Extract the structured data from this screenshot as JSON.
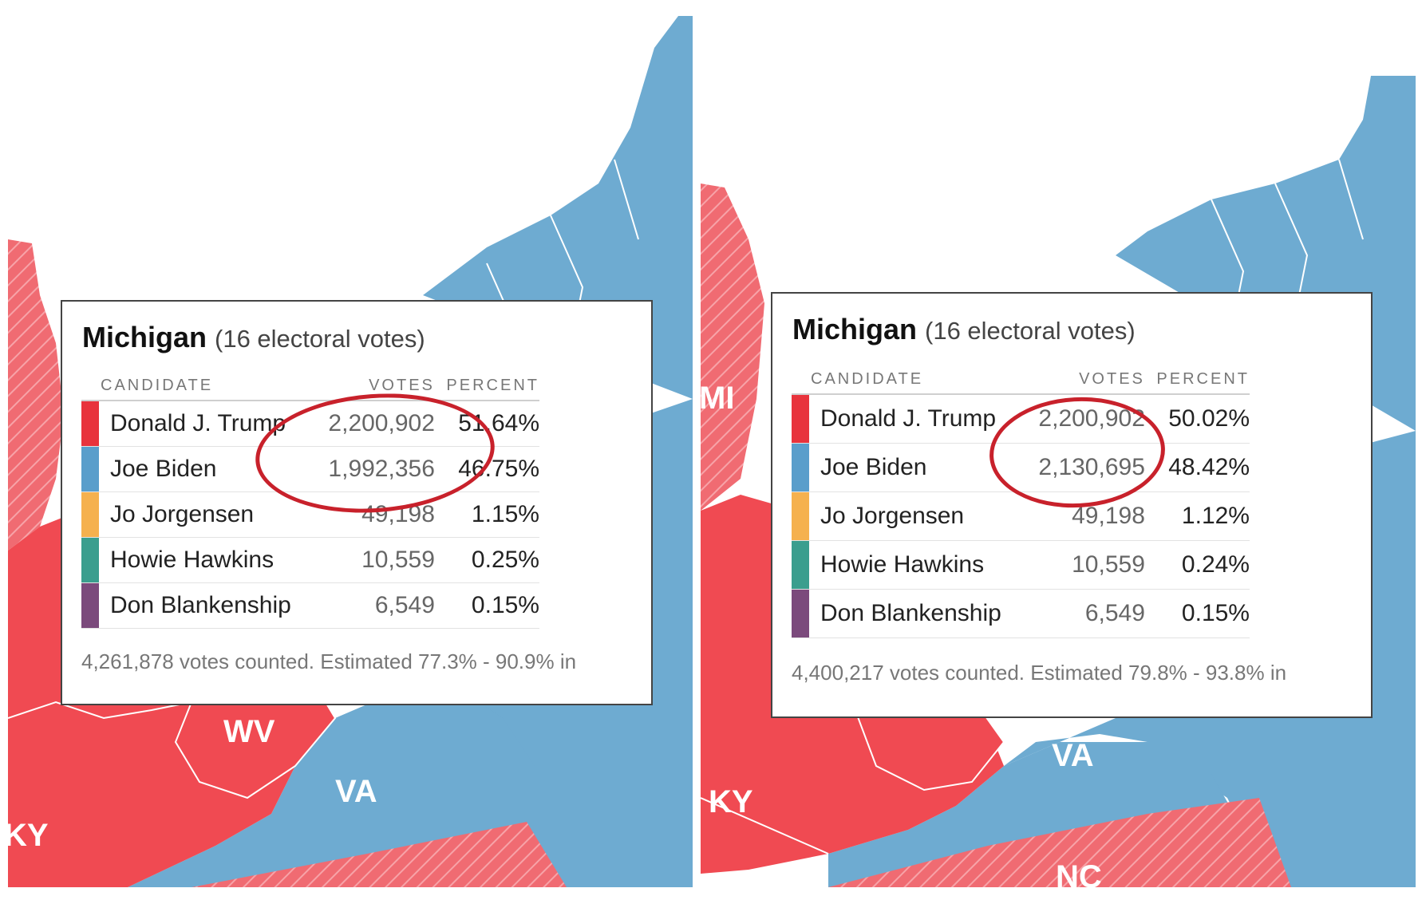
{
  "colors": {
    "republican": "#f04a52",
    "democrat": "#6eabd1",
    "highlight_circle": "#c8212b"
  },
  "panels": [
    {
      "map_labels": {
        "wv": "WV",
        "va": "VA",
        "ky": "KY"
      },
      "popup": {
        "state": "Michigan",
        "electoral": "(16 electoral votes)",
        "headers": {
          "candidate": "CANDIDATE",
          "votes": "VOTES",
          "percent": "PERCENT"
        },
        "rows": [
          {
            "name": "Donald J. Trump",
            "votes": "2,200,902",
            "percent": "51.64%",
            "color": "#e8333c"
          },
          {
            "name": "Joe Biden",
            "votes": "1,992,356",
            "percent": "46.75%",
            "color": "#5a9ecb"
          },
          {
            "name": "Jo Jorgensen",
            "votes": "49,198",
            "percent": "1.15%",
            "color": "#f5b14e"
          },
          {
            "name": "Howie Hawkins",
            "votes": "10,559",
            "percent": "0.25%",
            "color": "#3a9e8e"
          },
          {
            "name": "Don Blankenship",
            "votes": "6,549",
            "percent": "0.15%",
            "color": "#7b4a7c"
          }
        ],
        "footer": "4,261,878 votes counted. Estimated 77.3% - 90.9% in"
      }
    },
    {
      "map_labels": {
        "mi": "MI",
        "va": "VA",
        "ky": "KY",
        "nc": "NC"
      },
      "popup": {
        "state": "Michigan",
        "electoral": "(16 electoral votes)",
        "headers": {
          "candidate": "CANDIDATE",
          "votes": "VOTES",
          "percent": "PERCENT"
        },
        "rows": [
          {
            "name": "Donald J. Trump",
            "votes": "2,200,902",
            "percent": "50.02%",
            "color": "#e8333c"
          },
          {
            "name": "Joe Biden",
            "votes": "2,130,695",
            "percent": "48.42%",
            "color": "#5a9ecb"
          },
          {
            "name": "Jo Jorgensen",
            "votes": "49,198",
            "percent": "1.12%",
            "color": "#f5b14e"
          },
          {
            "name": "Howie Hawkins",
            "votes": "10,559",
            "percent": "0.24%",
            "color": "#3a9e8e"
          },
          {
            "name": "Don Blankenship",
            "votes": "6,549",
            "percent": "0.15%",
            "color": "#7b4a7c"
          }
        ],
        "footer": "4,400,217 votes counted. Estimated 79.8% - 93.8% in"
      }
    }
  ]
}
